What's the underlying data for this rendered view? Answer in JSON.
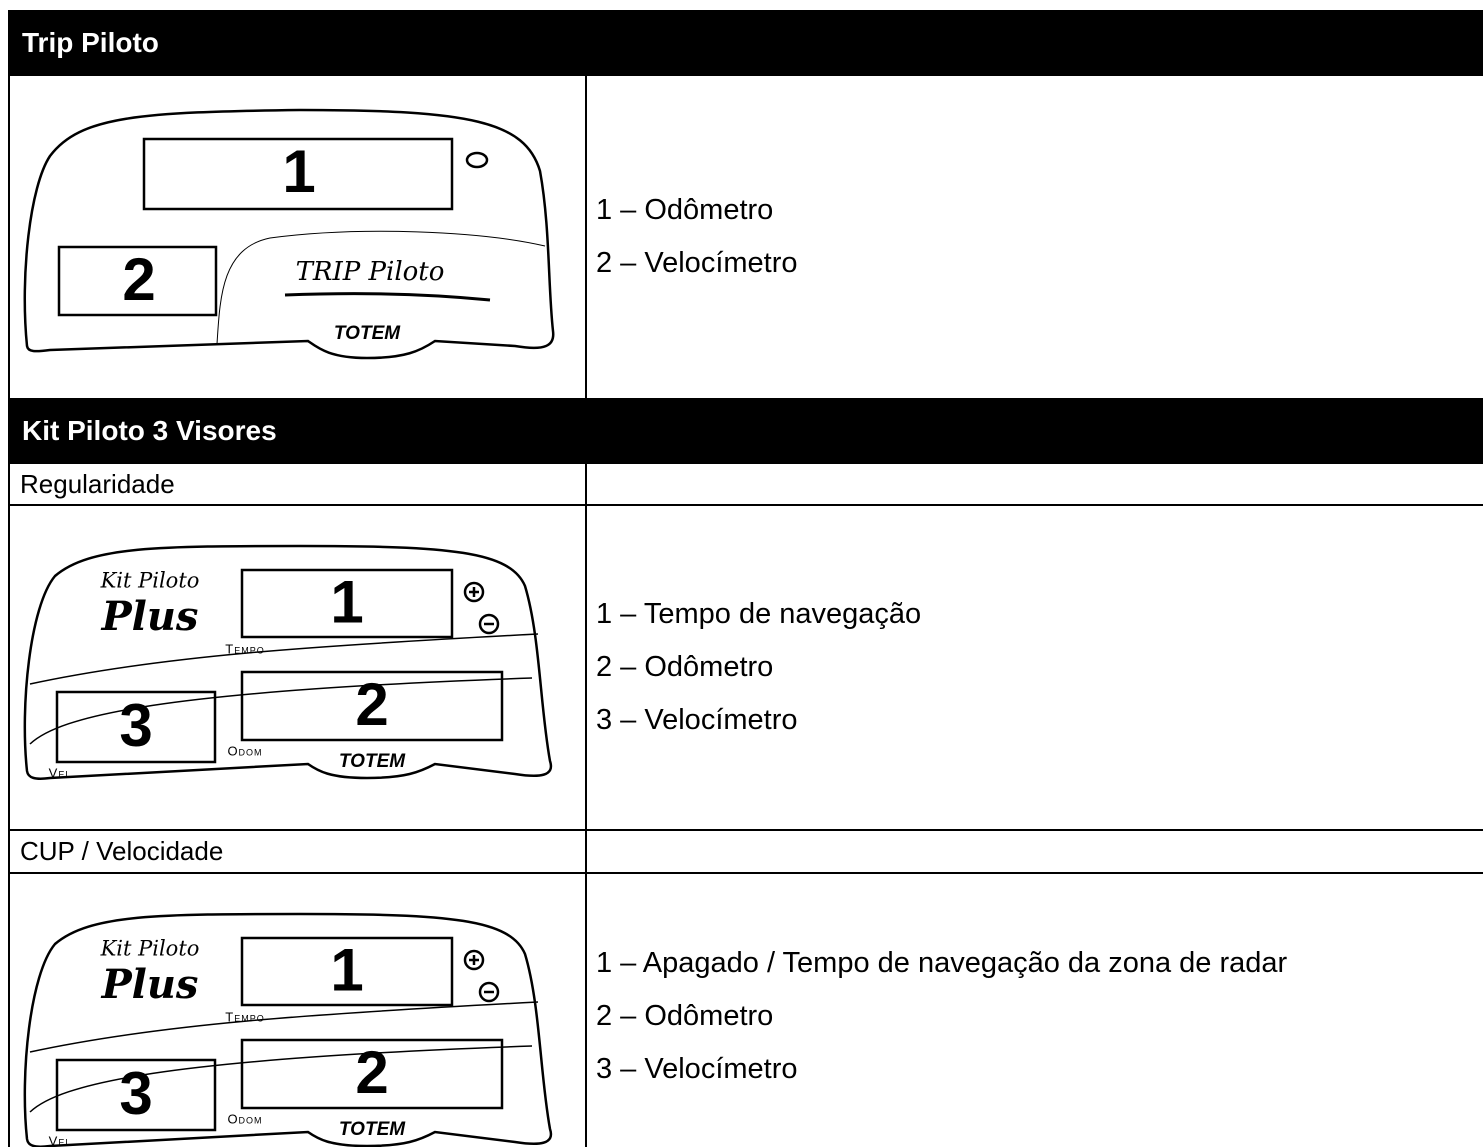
{
  "sections": [
    {
      "title": "Trip Piloto",
      "rows": [
        {
          "device": {
            "name": "TRIP Piloto",
            "brand": "TOTEM",
            "displays": [
              "1",
              "2"
            ]
          },
          "items": [
            "1 – Odômetro",
            "2 – Velocímetro"
          ]
        }
      ]
    },
    {
      "title": "Kit Piloto 3 Visores",
      "rows": [
        {
          "label": "Regularidade"
        },
        {
          "device": {
            "name": "Kit Piloto",
            "model": "Plus",
            "brand": "TOTEM",
            "displays": [
              {
                "digit": "1",
                "caption": "Tempo"
              },
              {
                "digit": "2",
                "caption": "Odom"
              },
              {
                "digit": "3",
                "caption": "Vel"
              }
            ]
          },
          "items": [
            "1 – Tempo de navegação",
            "2 – Odômetro",
            "3 – Velocímetro"
          ]
        },
        {
          "label": "CUP / Velocidade"
        },
        {
          "device": {
            "name": "Kit Piloto",
            "model": "Plus",
            "brand": "TOTEM",
            "displays": [
              {
                "digit": "1",
                "caption": "Tempo"
              },
              {
                "digit": "2",
                "caption": "Odom"
              },
              {
                "digit": "3",
                "caption": "Vel"
              }
            ]
          },
          "items": [
            "1 – Apagado / Tempo de navegação da zona de radar",
            "2 – Odômetro",
            "3 – Velocímetro"
          ]
        }
      ]
    }
  ]
}
